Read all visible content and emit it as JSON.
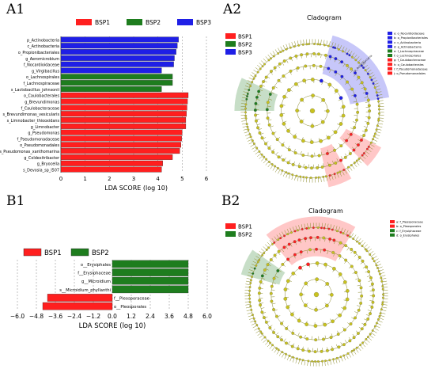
{
  "panels": {
    "a1": "A1",
    "a2": "A2",
    "b1": "B1",
    "b2": "B2"
  },
  "colors": {
    "BSP1": "#ff1f1f",
    "BSP2": "#1e7d1e",
    "BSP3": "#1f1fe6",
    "node": "#c8c21e",
    "edge": "#8a8a2a"
  },
  "chart_data": [
    {
      "type": "bar",
      "orientation": "horizontal",
      "title": "",
      "xlabel": "LDA SCORE (log 10)",
      "ylabel": "",
      "xlim": [
        0,
        6
      ],
      "xticks": [
        "0",
        "1",
        "2",
        "3",
        "4",
        "5",
        "6"
      ],
      "legend": [
        "BSP1",
        "BSP2",
        "BSP3"
      ],
      "legend_position": "top",
      "bars": [
        {
          "label": "p_Actinobacteria",
          "group": "BSP3",
          "value": 4.85
        },
        {
          "label": "c_Actinobacteria",
          "group": "BSP3",
          "value": 4.8
        },
        {
          "label": "o_Propionibacteriales",
          "group": "BSP3",
          "value": 4.75
        },
        {
          "label": "g_Aeromicrobium",
          "group": "BSP3",
          "value": 4.68
        },
        {
          "label": "f_Nocardioidaceae",
          "group": "BSP3",
          "value": 4.65
        },
        {
          "label": "g_Virgibacillus",
          "group": "BSP3",
          "value": 4.15
        },
        {
          "label": "o_Lachnospirales",
          "group": "BSP2",
          "value": 4.6
        },
        {
          "label": "f_Lachnospiraceae",
          "group": "BSP2",
          "value": 4.6
        },
        {
          "label": "s_Lactobacillus_johnsonii",
          "group": "BSP2",
          "value": 4.15
        },
        {
          "label": "o_Caulobacterales",
          "group": "BSP1",
          "value": 5.25
        },
        {
          "label": "g_Brevundimonas",
          "group": "BSP1",
          "value": 5.22
        },
        {
          "label": "f_Caulobacteraceae",
          "group": "BSP1",
          "value": 5.2
        },
        {
          "label": "s_Brevundimonas_vesicularis",
          "group": "BSP1",
          "value": 5.18
        },
        {
          "label": "s_Limnobacter_thiooxidans",
          "group": "BSP1",
          "value": 5.15
        },
        {
          "label": "g_Limnobacter",
          "group": "BSP1",
          "value": 5.15
        },
        {
          "label": "g_Pseudomonas",
          "group": "BSP1",
          "value": 5.0
        },
        {
          "label": "f_Pseudomonadaceae",
          "group": "BSP1",
          "value": 4.98
        },
        {
          "label": "o_Pseudomonadales",
          "group": "BSP1",
          "value": 4.95
        },
        {
          "label": "s_Pseudomonas_xanthomarina",
          "group": "BSP1",
          "value": 4.9
        },
        {
          "label": "g_Coldexitribacter",
          "group": "BSP1",
          "value": 4.6
        },
        {
          "label": "g_Bryocella",
          "group": "BSP1",
          "value": 4.2
        },
        {
          "label": "s_Devosia_sp_I507",
          "group": "BSP1",
          "value": 4.15
        }
      ]
    },
    {
      "type": "bar",
      "orientation": "horizontal",
      "title": "",
      "xlabel": "LDA SCORE (log 10)",
      "ylabel": "",
      "xlim": [
        -6.0,
        6.0
      ],
      "xticks": [
        "−6.0",
        "−4.8",
        "−3.6",
        "−2.4",
        "−1.2",
        "0.0",
        "1.2",
        "2.4",
        "3.6",
        "4.8",
        "6.0"
      ],
      "legend": [
        "BSP1",
        "BSP2"
      ],
      "legend_position": "top",
      "bars": [
        {
          "label": "o__Erysiphales",
          "group": "BSP2",
          "value": 4.8
        },
        {
          "label": "f__Erysiphaceae",
          "group": "BSP2",
          "value": 4.8
        },
        {
          "label": "g__Microidium",
          "group": "BSP2",
          "value": 4.8
        },
        {
          "label": "s__Microidium_phyllanthi",
          "group": "BSP2",
          "value": 4.8
        },
        {
          "label": "f__Pleosporaceae",
          "group": "BSP1",
          "value": -4.1
        },
        {
          "label": "o__Pleosporales",
          "group": "BSP1",
          "value": -4.4
        }
      ]
    }
  ],
  "cladogram_a2": {
    "title": "Cladogram",
    "legend": [
      "BSP1",
      "BSP2",
      "BSP3"
    ],
    "side_legend": [
      {
        "key": "a: o_Nocardioidaceae",
        "group": "BSP3"
      },
      {
        "key": "b: o_Propionibacteriales",
        "group": "BSP3"
      },
      {
        "key": "c: c_Actinobacteria",
        "group": "BSP3"
      },
      {
        "key": "d: p_Actinobacteria",
        "group": "BSP3"
      },
      {
        "key": "e: f_Lachnospiraceae",
        "group": "BSP2"
      },
      {
        "key": "f: o_Lachnospirales",
        "group": "BSP2"
      },
      {
        "key": "g: f_Caulobacteraceae",
        "group": "BSP1"
      },
      {
        "key": "h: o_Caulobacterales",
        "group": "BSP1"
      },
      {
        "key": "i: f_Pseudomonadaceae",
        "group": "BSP1"
      },
      {
        "key": "j: o_Pseudomonadales",
        "group": "BSP1"
      }
    ],
    "highlights": [
      {
        "group": "BSP3",
        "from": 15,
        "to": 80,
        "label": "p_Actinobacteria"
      },
      {
        "group": "BSP2",
        "from": 270,
        "to": 295,
        "label": ""
      },
      {
        "group": "BSP1",
        "from": 118,
        "to": 135,
        "label": ""
      },
      {
        "group": "BSP1",
        "from": 150,
        "to": 168,
        "label": ""
      }
    ]
  },
  "cladogram_b2": {
    "title": "Cladogram",
    "legend": [
      "BSP1",
      "BSP2"
    ],
    "side_legend": [
      {
        "key": "a: f_Pleosporaceae",
        "group": "BSP1"
      },
      {
        "key": "b: o_Pleosporales",
        "group": "BSP1"
      },
      {
        "key": "c: f_Erysiphaceae",
        "group": "BSP2"
      },
      {
        "key": "d: o_Erysiphales",
        "group": "BSP2"
      }
    ],
    "highlights": [
      {
        "group": "BSP1",
        "from": -40,
        "to": 30,
        "label": ""
      },
      {
        "group": "BSP2",
        "from": 285,
        "to": 305,
        "label": ""
      }
    ]
  }
}
